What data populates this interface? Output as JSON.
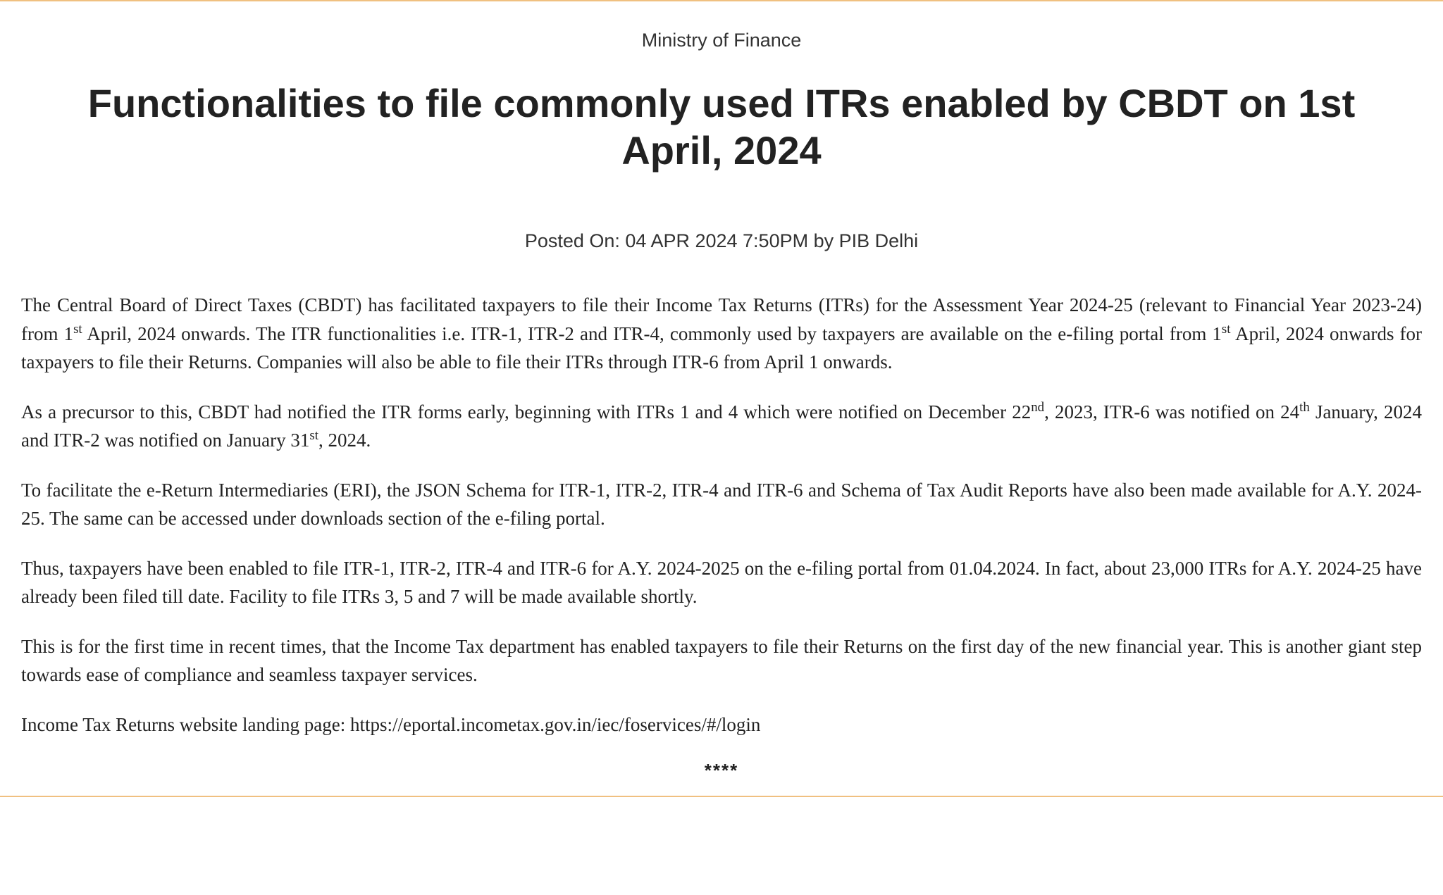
{
  "ministry": "Ministry of Finance",
  "headline": "Functionalities to file commonly used ITRs enabled by CBDT on 1st April, 2024",
  "posted": "Posted On: 04 APR 2024 7:50PM by PIB Delhi",
  "p1": {
    "a": "The Central Board of Direct Taxes (CBDT) has facilitated taxpayers to file their Income Tax Returns (ITRs) for the Assessment Year 2024-25 (relevant to Financial Year 2023-24) from 1",
    "s1": "st",
    "b": " April, 2024 onwards. The ITR functionalities i.e. ITR-1, ITR-2 and ITR-4, commonly used by taxpayers are available on the e-filing portal from 1",
    "s2": "st",
    "c": " April, 2024 onwards for taxpayers to file their Returns. Companies will also be able to file their ITRs through ITR-6 from April 1 onwards."
  },
  "p2": {
    "a": "As a precursor to this, CBDT had notified the ITR forms early, beginning with ITRs 1 and 4 which were notified on December 22",
    "s1": "nd",
    "b": ", 2023, ITR-6 was notified on 24",
    "s2": "th",
    "c": " January, 2024 and ITR-2 was notified on January 31",
    "s3": "st",
    "d": ", 2024."
  },
  "p3": "To facilitate the e-Return Intermediaries (ERI), the JSON Schema for ITR-1, ITR-2, ITR-4 and ITR-6 and Schema of Tax Audit Reports have also been made available for A.Y. 2024-25. The same can be accessed under downloads section of the e-filing portal.",
  "p4": "Thus, taxpayers have been enabled to file ITR-1, ITR-2, ITR-4 and ITR-6 for A.Y. 2024-2025 on the e-filing portal from 01.04.2024. In fact, about 23,000 ITRs for A.Y. 2024-25 have already been filed till date. Facility to file ITRs 3, 5 and 7 will be made available shortly.",
  "p5": "This is for the first time in recent times, that the Income Tax department has enabled taxpayers to file their Returns on the first day of the new financial year. This is another giant step towards ease of compliance and seamless taxpayer services.",
  "p6": {
    "label": "Income Tax Returns website landing page: ",
    "url": "https://eportal.incometax.gov.in/iec/foservices/#/login"
  },
  "stars": "****"
}
